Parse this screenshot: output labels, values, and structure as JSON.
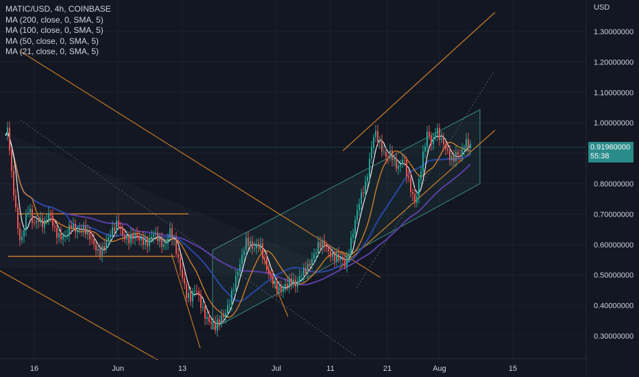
{
  "header": {
    "symbol": "MATIC/USD, 4h, COINBASE",
    "indicators": [
      "MA (200, close, 0, SMA, 5)",
      "MA (100, close, 0, SMA, 5)",
      "MA (50, close, 0, SMA, 5)",
      "MA (21, close, 0, SMA, 5)"
    ]
  },
  "price_axis": {
    "currency": "USD"
  },
  "last_price": {
    "value": "0.91960000",
    "countdown": "55:38"
  },
  "colors": {
    "background": "#131722",
    "up": "#26a69a",
    "down": "#ef5350",
    "ma200": "#5b3fa8",
    "ma100": "#2948a8",
    "ma50": "#c77b2a",
    "ma21": "#f0f0f0",
    "trend": "#c77b2a",
    "channel": "#3a8c80"
  },
  "chart_data": {
    "type": "candlestick",
    "timeframe": "4h",
    "y_axis": {
      "ylim": [
        0.2,
        1.4
      ],
      "ticks": [
        0.3,
        0.4,
        0.5,
        0.6,
        0.7,
        0.8,
        0.9,
        1.0,
        1.1,
        1.2,
        1.3
      ],
      "tick_labels": [
        "0.30000000",
        "0.40000000",
        "0.50000000",
        "0.60000000",
        "0.70000000",
        "0.80000000",
        "0.90000000",
        "1.00000000",
        "1.10000000",
        "1.20000000",
        "1.30000000"
      ]
    },
    "x_axis": {
      "tick_labels": [
        "16",
        "Jun",
        "13",
        "Jul",
        "11",
        "21",
        "Aug",
        "15"
      ]
    },
    "price_path": [
      [
        0,
        0.95
      ],
      [
        4,
        0.98
      ],
      [
        8,
        0.85
      ],
      [
        12,
        0.78
      ],
      [
        16,
        0.7
      ],
      [
        22,
        0.6
      ],
      [
        28,
        0.66
      ],
      [
        34,
        0.72
      ],
      [
        40,
        0.67
      ],
      [
        48,
        0.69
      ],
      [
        56,
        0.66
      ],
      [
        64,
        0.7
      ],
      [
        72,
        0.65
      ],
      [
        80,
        0.63
      ],
      [
        88,
        0.62
      ],
      [
        96,
        0.66
      ],
      [
        104,
        0.65
      ],
      [
        112,
        0.66
      ],
      [
        120,
        0.63
      ],
      [
        128,
        0.6
      ],
      [
        136,
        0.58
      ],
      [
        146,
        0.6
      ],
      [
        156,
        0.64
      ],
      [
        164,
        0.68
      ],
      [
        172,
        0.63
      ],
      [
        180,
        0.61
      ],
      [
        190,
        0.63
      ],
      [
        200,
        0.62
      ],
      [
        208,
        0.6
      ],
      [
        216,
        0.63
      ],
      [
        224,
        0.62
      ],
      [
        232,
        0.6
      ],
      [
        240,
        0.64
      ],
      [
        246,
        0.6
      ],
      [
        252,
        0.55
      ],
      [
        258,
        0.5
      ],
      [
        264,
        0.44
      ],
      [
        270,
        0.42
      ],
      [
        278,
        0.45
      ],
      [
        286,
        0.4
      ],
      [
        294,
        0.36
      ],
      [
        300,
        0.34
      ],
      [
        306,
        0.32
      ],
      [
        312,
        0.35
      ],
      [
        320,
        0.38
      ],
      [
        328,
        0.42
      ],
      [
        336,
        0.48
      ],
      [
        344,
        0.55
      ],
      [
        350,
        0.62
      ],
      [
        356,
        0.61
      ],
      [
        362,
        0.58
      ],
      [
        370,
        0.6
      ],
      [
        378,
        0.55
      ],
      [
        386,
        0.5
      ],
      [
        394,
        0.46
      ],
      [
        400,
        0.44
      ],
      [
        408,
        0.47
      ],
      [
        416,
        0.49
      ],
      [
        424,
        0.46
      ],
      [
        432,
        0.5
      ],
      [
        440,
        0.53
      ],
      [
        448,
        0.56
      ],
      [
        456,
        0.59
      ],
      [
        464,
        0.6
      ],
      [
        472,
        0.58
      ],
      [
        480,
        0.56
      ],
      [
        488,
        0.55
      ],
      [
        496,
        0.53
      ],
      [
        502,
        0.6
      ],
      [
        508,
        0.66
      ],
      [
        514,
        0.72
      ],
      [
        520,
        0.76
      ],
      [
        526,
        0.8
      ],
      [
        532,
        0.9
      ],
      [
        538,
        0.98
      ],
      [
        544,
        0.94
      ],
      [
        550,
        0.9
      ],
      [
        556,
        0.88
      ],
      [
        562,
        0.91
      ],
      [
        568,
        0.87
      ],
      [
        574,
        0.85
      ],
      [
        580,
        0.88
      ],
      [
        586,
        0.82
      ],
      [
        592,
        0.78
      ],
      [
        598,
        0.74
      ],
      [
        604,
        0.82
      ],
      [
        610,
        0.9
      ],
      [
        616,
        0.97
      ],
      [
        622,
        0.93
      ],
      [
        628,
        0.99
      ],
      [
        634,
        0.95
      ],
      [
        640,
        0.92
      ],
      [
        646,
        0.89
      ],
      [
        652,
        0.88
      ],
      [
        658,
        0.91
      ],
      [
        664,
        0.89
      ],
      [
        670,
        0.93
      ],
      [
        676,
        0.92
      ],
      [
        680,
        0.92
      ]
    ],
    "last": 0.9196
  }
}
